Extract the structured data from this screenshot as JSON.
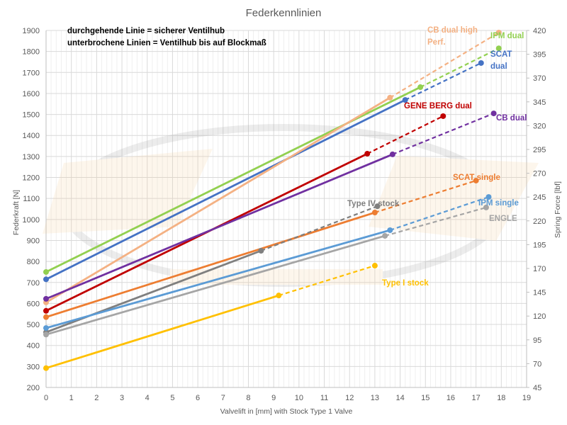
{
  "chart_data": {
    "type": "line",
    "title": "Federkennlinien",
    "xlabel": "Valvelift in [mm]  with Stock Type  1 Valve",
    "ylabel": "Federkraft [N]",
    "y2label": "Spring Force [lbf]",
    "xlim": [
      0,
      19
    ],
    "ylim": [
      200,
      1900
    ],
    "y2lim": [
      45,
      420
    ],
    "x_ticks": [
      "0",
      "1",
      "2",
      "3",
      "4",
      "5",
      "6",
      "7",
      "8",
      "9",
      "10",
      "11",
      "12",
      "13",
      "14",
      "15",
      "16",
      "17",
      "18",
      "19"
    ],
    "y_ticks": [
      "200",
      "300",
      "400",
      "500",
      "600",
      "700",
      "800",
      "900",
      "1000",
      "1100",
      "1200",
      "1300",
      "1400",
      "1500",
      "1600",
      "1700",
      "1800",
      "1900"
    ],
    "y2_ticks": [
      "45",
      "70",
      "95",
      "120",
      "145",
      "170",
      "195",
      "220",
      "245",
      "270",
      "295",
      "320",
      "345",
      "370",
      "395",
      "420"
    ],
    "grid": true,
    "annotations": [
      "durchgehende Linie = sicherer Ventilhub",
      "unterbrochene Linien = Ventilhub bis auf Blockmaß"
    ],
    "series": [
      {
        "name": "IPM dual",
        "label_lines": [
          "IPM dual"
        ],
        "color": "#92d050",
        "start": [
          0,
          750
        ],
        "safe_end": [
          14.8,
          1630
        ],
        "block_end": [
          17.9,
          1815
        ]
      },
      {
        "name": "SCAT dual",
        "label_lines": [
          "SCAT",
          "dual"
        ],
        "color": "#4472c4",
        "start": [
          0,
          715
        ],
        "safe_end": [
          14.2,
          1569
        ],
        "block_end": [
          17.2,
          1745
        ]
      },
      {
        "name": "CB dual high Perf.",
        "label_lines": [
          "CB dual high",
          "Perf."
        ],
        "color": "#f4b183",
        "start": [
          0,
          605
        ],
        "safe_end": [
          13.6,
          1580
        ],
        "block_end": [
          17.9,
          1890
        ]
      },
      {
        "name": "GENE BERG dual",
        "label_lines": [
          "GENE BERG dual"
        ],
        "color": "#c00000",
        "start": [
          0,
          565
        ],
        "safe_end": [
          12.7,
          1313
        ],
        "block_end": [
          15.7,
          1492
        ]
      },
      {
        "name": "CB dual",
        "label_lines": [
          "CB dual"
        ],
        "color": "#7030a0",
        "start": [
          0,
          622
        ],
        "safe_end": [
          13.7,
          1310
        ],
        "block_end": [
          17.7,
          1505
        ]
      },
      {
        "name": "SCAT single",
        "label_lines": [
          "SCAT single"
        ],
        "color": "#ed7d31",
        "start": [
          0,
          535
        ],
        "safe_end": [
          13.0,
          1033
        ],
        "block_end": [
          17.0,
          1185
        ]
      },
      {
        "name": "Type IV stock",
        "label_lines": [
          "Type IV stock"
        ],
        "color": "#7f7f7f",
        "start": [
          0,
          463
        ],
        "safe_end": [
          8.5,
          851
        ],
        "block_end": [
          13.1,
          1063
        ]
      },
      {
        "name": "IPM single",
        "label_lines": [
          "IPM single"
        ],
        "color": "#5b9bd5",
        "start": [
          0,
          483
        ],
        "safe_end": [
          13.6,
          949
        ],
        "block_end": [
          17.5,
          1107
        ]
      },
      {
        "name": "ENGLE",
        "label_lines": [
          "ENGLE"
        ],
        "color": "#a5a5a5",
        "start": [
          0,
          452
        ],
        "safe_end": [
          13.4,
          922
        ],
        "block_end": [
          17.4,
          1057
        ]
      },
      {
        "name": "Type I stock",
        "label_lines": [
          "Type I stock"
        ],
        "color": "#ffc000",
        "start": [
          0,
          292
        ],
        "safe_end": [
          9.2,
          638
        ],
        "block_end": [
          13.0,
          780
        ]
      }
    ]
  }
}
